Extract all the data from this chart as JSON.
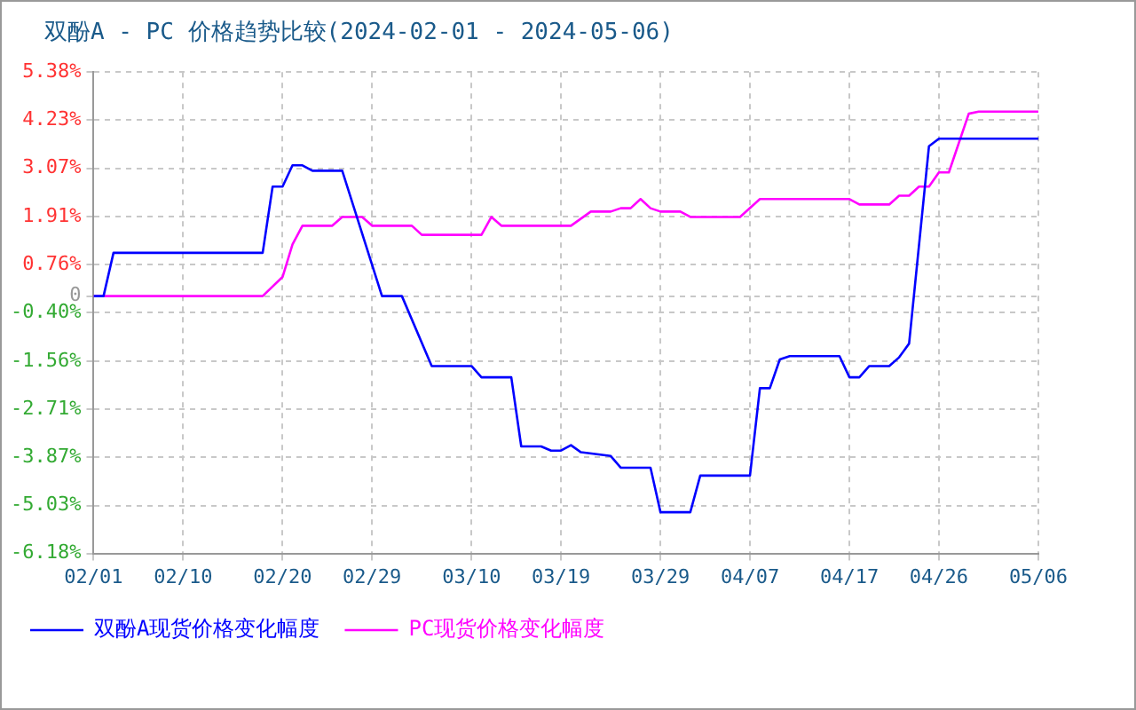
{
  "chart_data": {
    "type": "line",
    "title": "双酚A - PC 价格趋势比较(2024-02-01 - 2024-05-06)",
    "xlim": [
      "2024-02-01",
      "2024-05-06"
    ],
    "xticks": [
      {
        "value": "2024-02-01",
        "label": "02/01"
      },
      {
        "value": "2024-02-10",
        "label": "02/10"
      },
      {
        "value": "2024-02-20",
        "label": "02/20"
      },
      {
        "value": "2024-02-29",
        "label": "02/29"
      },
      {
        "value": "2024-03-10",
        "label": "03/10"
      },
      {
        "value": "2024-03-19",
        "label": "03/19"
      },
      {
        "value": "2024-03-29",
        "label": "03/29"
      },
      {
        "value": "2024-04-07",
        "label": "04/07"
      },
      {
        "value": "2024-04-17",
        "label": "04/17"
      },
      {
        "value": "2024-04-26",
        "label": "04/26"
      },
      {
        "value": "2024-05-06",
        "label": "05/06"
      }
    ],
    "ylim": [
      -6.18,
      5.38
    ],
    "yticks": [
      {
        "value": -6.18,
        "label": "-6.18%"
      },
      {
        "value": -5.03,
        "label": "-5.03%"
      },
      {
        "value": -3.87,
        "label": "-3.87%"
      },
      {
        "value": -2.71,
        "label": "-2.71%"
      },
      {
        "value": -1.56,
        "label": "-1.56%"
      },
      {
        "value": -0.4,
        "label": "-0.40%"
      },
      0,
      {
        "value": 0.76,
        "label": "0.76%"
      },
      {
        "value": 1.91,
        "label": "1.91%"
      },
      {
        "value": 3.07,
        "label": "3.07%"
      },
      {
        "value": 4.23,
        "label": "4.23%"
      },
      {
        "value": 5.38,
        "label": "5.38%"
      }
    ],
    "grid": true,
    "legend": "bottom",
    "marker": "none",
    "line_style": "solid",
    "series": [
      {
        "name": "双酚A现货价格变化幅度",
        "color": "#0000ff",
        "x": [
          "2024-02-01",
          "2024-02-02",
          "2024-02-03",
          "2024-02-18",
          "2024-02-19",
          "2024-02-20",
          "2024-02-21",
          "2024-02-22",
          "2024-02-23",
          "2024-02-26",
          "2024-03-01",
          "2024-03-03",
          "2024-03-06",
          "2024-03-10",
          "2024-03-11",
          "2024-03-14",
          "2024-03-15",
          "2024-03-17",
          "2024-03-18",
          "2024-03-19",
          "2024-03-20",
          "2024-03-21",
          "2024-03-24",
          "2024-03-25",
          "2024-03-28",
          "2024-03-29",
          "2024-04-01",
          "2024-04-02",
          "2024-04-07",
          "2024-04-08",
          "2024-04-09",
          "2024-04-10",
          "2024-04-11",
          "2024-04-16",
          "2024-04-17",
          "2024-04-18",
          "2024-04-19",
          "2024-04-21",
          "2024-04-22",
          "2024-04-23",
          "2024-04-25",
          "2024-04-26",
          "2024-05-06"
        ],
        "values": [
          0,
          0,
          1.04,
          1.04,
          2.63,
          2.63,
          3.14,
          3.14,
          3.01,
          3.01,
          0,
          0,
          -1.68,
          -1.68,
          -1.95,
          -1.95,
          -3.61,
          -3.61,
          -3.71,
          -3.71,
          -3.58,
          -3.75,
          -3.84,
          -4.12,
          -4.12,
          -5.19,
          -5.19,
          -4.31,
          -4.31,
          -2.21,
          -2.21,
          -1.52,
          -1.44,
          -1.44,
          -1.95,
          -1.95,
          -1.68,
          -1.68,
          -1.47,
          -1.14,
          3.6,
          3.78,
          3.78
        ]
      },
      {
        "name": "PC现货价格变化幅度",
        "color": "#ff00ff",
        "x": [
          "2024-02-01",
          "2024-02-18",
          "2024-02-20",
          "2024-02-21",
          "2024-02-22",
          "2024-02-25",
          "2024-02-26",
          "2024-02-28",
          "2024-02-29",
          "2024-03-04",
          "2024-03-05",
          "2024-03-11",
          "2024-03-12",
          "2024-03-13",
          "2024-03-20",
          "2024-03-22",
          "2024-03-24",
          "2024-03-25",
          "2024-03-26",
          "2024-03-27",
          "2024-03-28",
          "2024-03-29",
          "2024-03-31",
          "2024-04-01",
          "2024-04-06",
          "2024-04-08",
          "2024-04-17",
          "2024-04-18",
          "2024-04-21",
          "2024-04-22",
          "2024-04-23",
          "2024-04-24",
          "2024-04-25",
          "2024-04-26",
          "2024-04-27",
          "2024-04-29",
          "2024-04-30",
          "2024-05-06"
        ],
        "values": [
          0,
          0,
          0.46,
          1.24,
          1.69,
          1.69,
          1.9,
          1.9,
          1.69,
          1.69,
          1.47,
          1.47,
          1.9,
          1.69,
          1.69,
          2.03,
          2.03,
          2.11,
          2.11,
          2.33,
          2.11,
          2.03,
          2.03,
          1.9,
          1.9,
          2.33,
          2.33,
          2.2,
          2.2,
          2.41,
          2.41,
          2.63,
          2.63,
          2.97,
          2.97,
          4.38,
          4.43,
          4.43
        ]
      }
    ]
  }
}
